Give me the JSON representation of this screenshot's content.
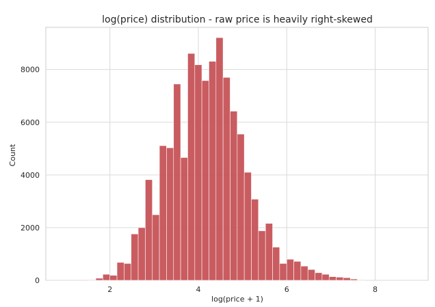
{
  "chart_data": {
    "type": "bar",
    "title": "log(price) distribution - raw price is heavily right-skewed",
    "xlabel": "log(price + 1)",
    "ylabel": "Count",
    "xlim": [
      0.55,
      9.2
    ],
    "ylim": [
      0,
      9600
    ],
    "x_ticks": [
      2,
      4,
      6,
      8
    ],
    "y_ticks": [
      0,
      2000,
      4000,
      6000,
      8000
    ],
    "grid": true,
    "bar_color": "#c44e52",
    "bins": [
      {
        "x0": 1.51,
        "x1": 1.68,
        "count": 20
      },
      {
        "x0": 1.68,
        "x1": 1.84,
        "count": 80
      },
      {
        "x0": 1.84,
        "x1": 2.0,
        "count": 230
      },
      {
        "x0": 2.0,
        "x1": 2.16,
        "count": 190
      },
      {
        "x0": 2.16,
        "x1": 2.32,
        "count": 680
      },
      {
        "x0": 2.32,
        "x1": 2.48,
        "count": 640
      },
      {
        "x0": 2.48,
        "x1": 2.64,
        "count": 1760
      },
      {
        "x0": 2.64,
        "x1": 2.8,
        "count": 2000
      },
      {
        "x0": 2.8,
        "x1": 2.96,
        "count": 3820
      },
      {
        "x0": 2.96,
        "x1": 3.12,
        "count": 2490
      },
      {
        "x0": 3.12,
        "x1": 3.28,
        "count": 5110
      },
      {
        "x0": 3.28,
        "x1": 3.44,
        "count": 5030
      },
      {
        "x0": 3.44,
        "x1": 3.6,
        "count": 7450
      },
      {
        "x0": 3.6,
        "x1": 3.76,
        "count": 4660
      },
      {
        "x0": 3.76,
        "x1": 3.92,
        "count": 8610
      },
      {
        "x0": 3.92,
        "x1": 4.08,
        "count": 8180
      },
      {
        "x0": 4.08,
        "x1": 4.24,
        "count": 7580
      },
      {
        "x0": 4.24,
        "x1": 4.4,
        "count": 8310
      },
      {
        "x0": 4.4,
        "x1": 4.56,
        "count": 9210
      },
      {
        "x0": 4.56,
        "x1": 4.72,
        "count": 7700
      },
      {
        "x0": 4.72,
        "x1": 4.88,
        "count": 6420
      },
      {
        "x0": 4.88,
        "x1": 5.04,
        "count": 5550
      },
      {
        "x0": 5.04,
        "x1": 5.2,
        "count": 4100
      },
      {
        "x0": 5.2,
        "x1": 5.36,
        "count": 3080
      },
      {
        "x0": 5.36,
        "x1": 5.52,
        "count": 1880
      },
      {
        "x0": 5.52,
        "x1": 5.68,
        "count": 2160
      },
      {
        "x0": 5.68,
        "x1": 5.84,
        "count": 1260
      },
      {
        "x0": 5.84,
        "x1": 6.0,
        "count": 640
      },
      {
        "x0": 6.0,
        "x1": 6.16,
        "count": 800
      },
      {
        "x0": 6.16,
        "x1": 6.32,
        "count": 720
      },
      {
        "x0": 6.32,
        "x1": 6.48,
        "count": 540
      },
      {
        "x0": 6.48,
        "x1": 6.64,
        "count": 410
      },
      {
        "x0": 6.64,
        "x1": 6.8,
        "count": 290
      },
      {
        "x0": 6.8,
        "x1": 6.96,
        "count": 230
      },
      {
        "x0": 6.96,
        "x1": 7.12,
        "count": 140
      },
      {
        "x0": 7.12,
        "x1": 7.28,
        "count": 120
      },
      {
        "x0": 7.28,
        "x1": 7.44,
        "count": 100
      },
      {
        "x0": 7.44,
        "x1": 7.6,
        "count": 50
      },
      {
        "x0": 7.6,
        "x1": 7.76,
        "count": 20
      }
    ]
  }
}
